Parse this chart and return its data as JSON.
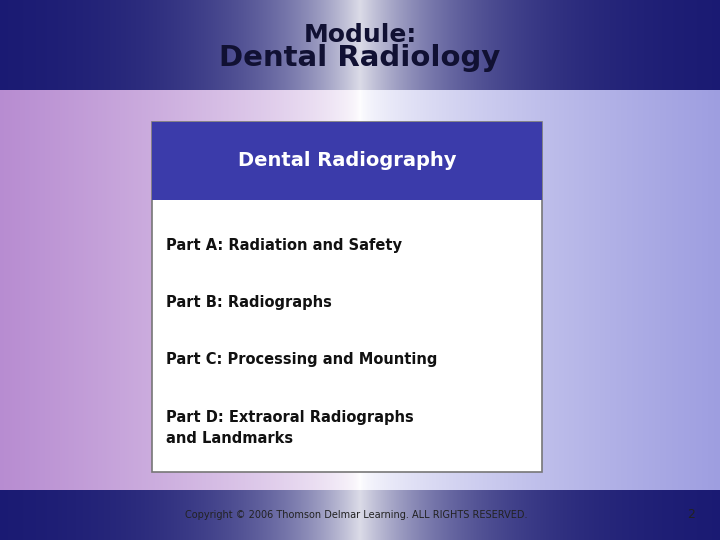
{
  "title_line1": "Module:",
  "title_line2": "Dental Radiology",
  "title_color": "#111133",
  "header_bg_color": "#3B3BAA",
  "header_text": "Dental Radiography",
  "header_text_color": "#FFFFFF",
  "body_bg_color": "#FFFFFF",
  "box_border_color": "#777777",
  "parts": [
    "Part A: Radiation and Safety",
    "Part B: Radiographs",
    "Part C: Processing and Mounting",
    "Part D: Extraoral Radiographs\nand Landmarks"
  ],
  "parts_text_color": "#111111",
  "footer_text": "Copyright © 2006 Thomson Delmar Learning. ALL RIGHTS RESERVED.",
  "footer_number": "2",
  "footer_color": "#222222",
  "figsize": [
    7.2,
    5.4
  ],
  "dpi": 100
}
